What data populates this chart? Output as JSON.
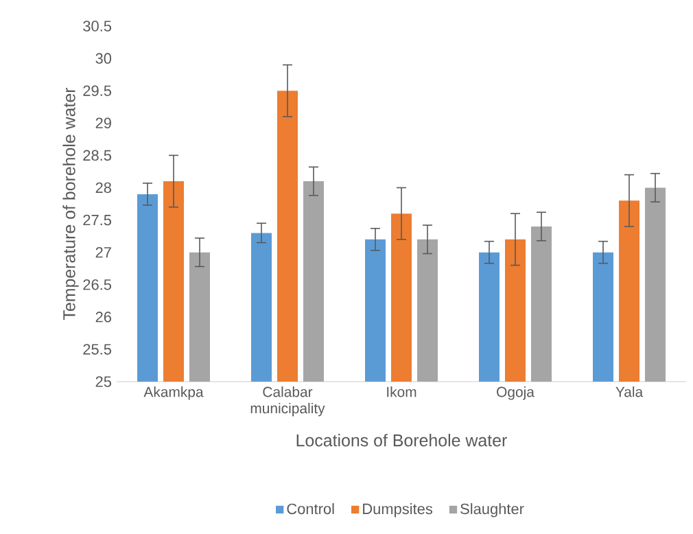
{
  "chart_data": {
    "type": "bar",
    "xlabel": "Locations of Borehole water",
    "ylabel": "Temperature of borehole water",
    "categories": [
      "Akamkpa",
      "Calabar municipality",
      "Ikom",
      "Ogoja",
      "Yala"
    ],
    "series": [
      {
        "name": "Control",
        "color": "#5b9bd5",
        "values": [
          27.9,
          27.3,
          27.2,
          27.0,
          27.0
        ],
        "errors": [
          0.17,
          0.15,
          0.17,
          0.17,
          0.17
        ]
      },
      {
        "name": "Dumpsites",
        "color": "#ed7d31",
        "values": [
          28.1,
          29.5,
          27.6,
          27.2,
          27.8
        ],
        "errors": [
          0.4,
          0.4,
          0.4,
          0.4,
          0.4
        ]
      },
      {
        "name": "Slaughter",
        "color": "#a5a5a5",
        "values": [
          27.0,
          28.1,
          27.2,
          27.4,
          28.0
        ],
        "errors": [
          0.22,
          0.22,
          0.22,
          0.22,
          0.22
        ]
      }
    ],
    "ylim": [
      25,
      30.5
    ],
    "yticks": [
      25,
      25.5,
      26,
      26.5,
      27,
      27.5,
      28,
      28.5,
      29,
      29.5,
      30,
      30.5
    ],
    "grid": false,
    "legend": "bottom"
  }
}
